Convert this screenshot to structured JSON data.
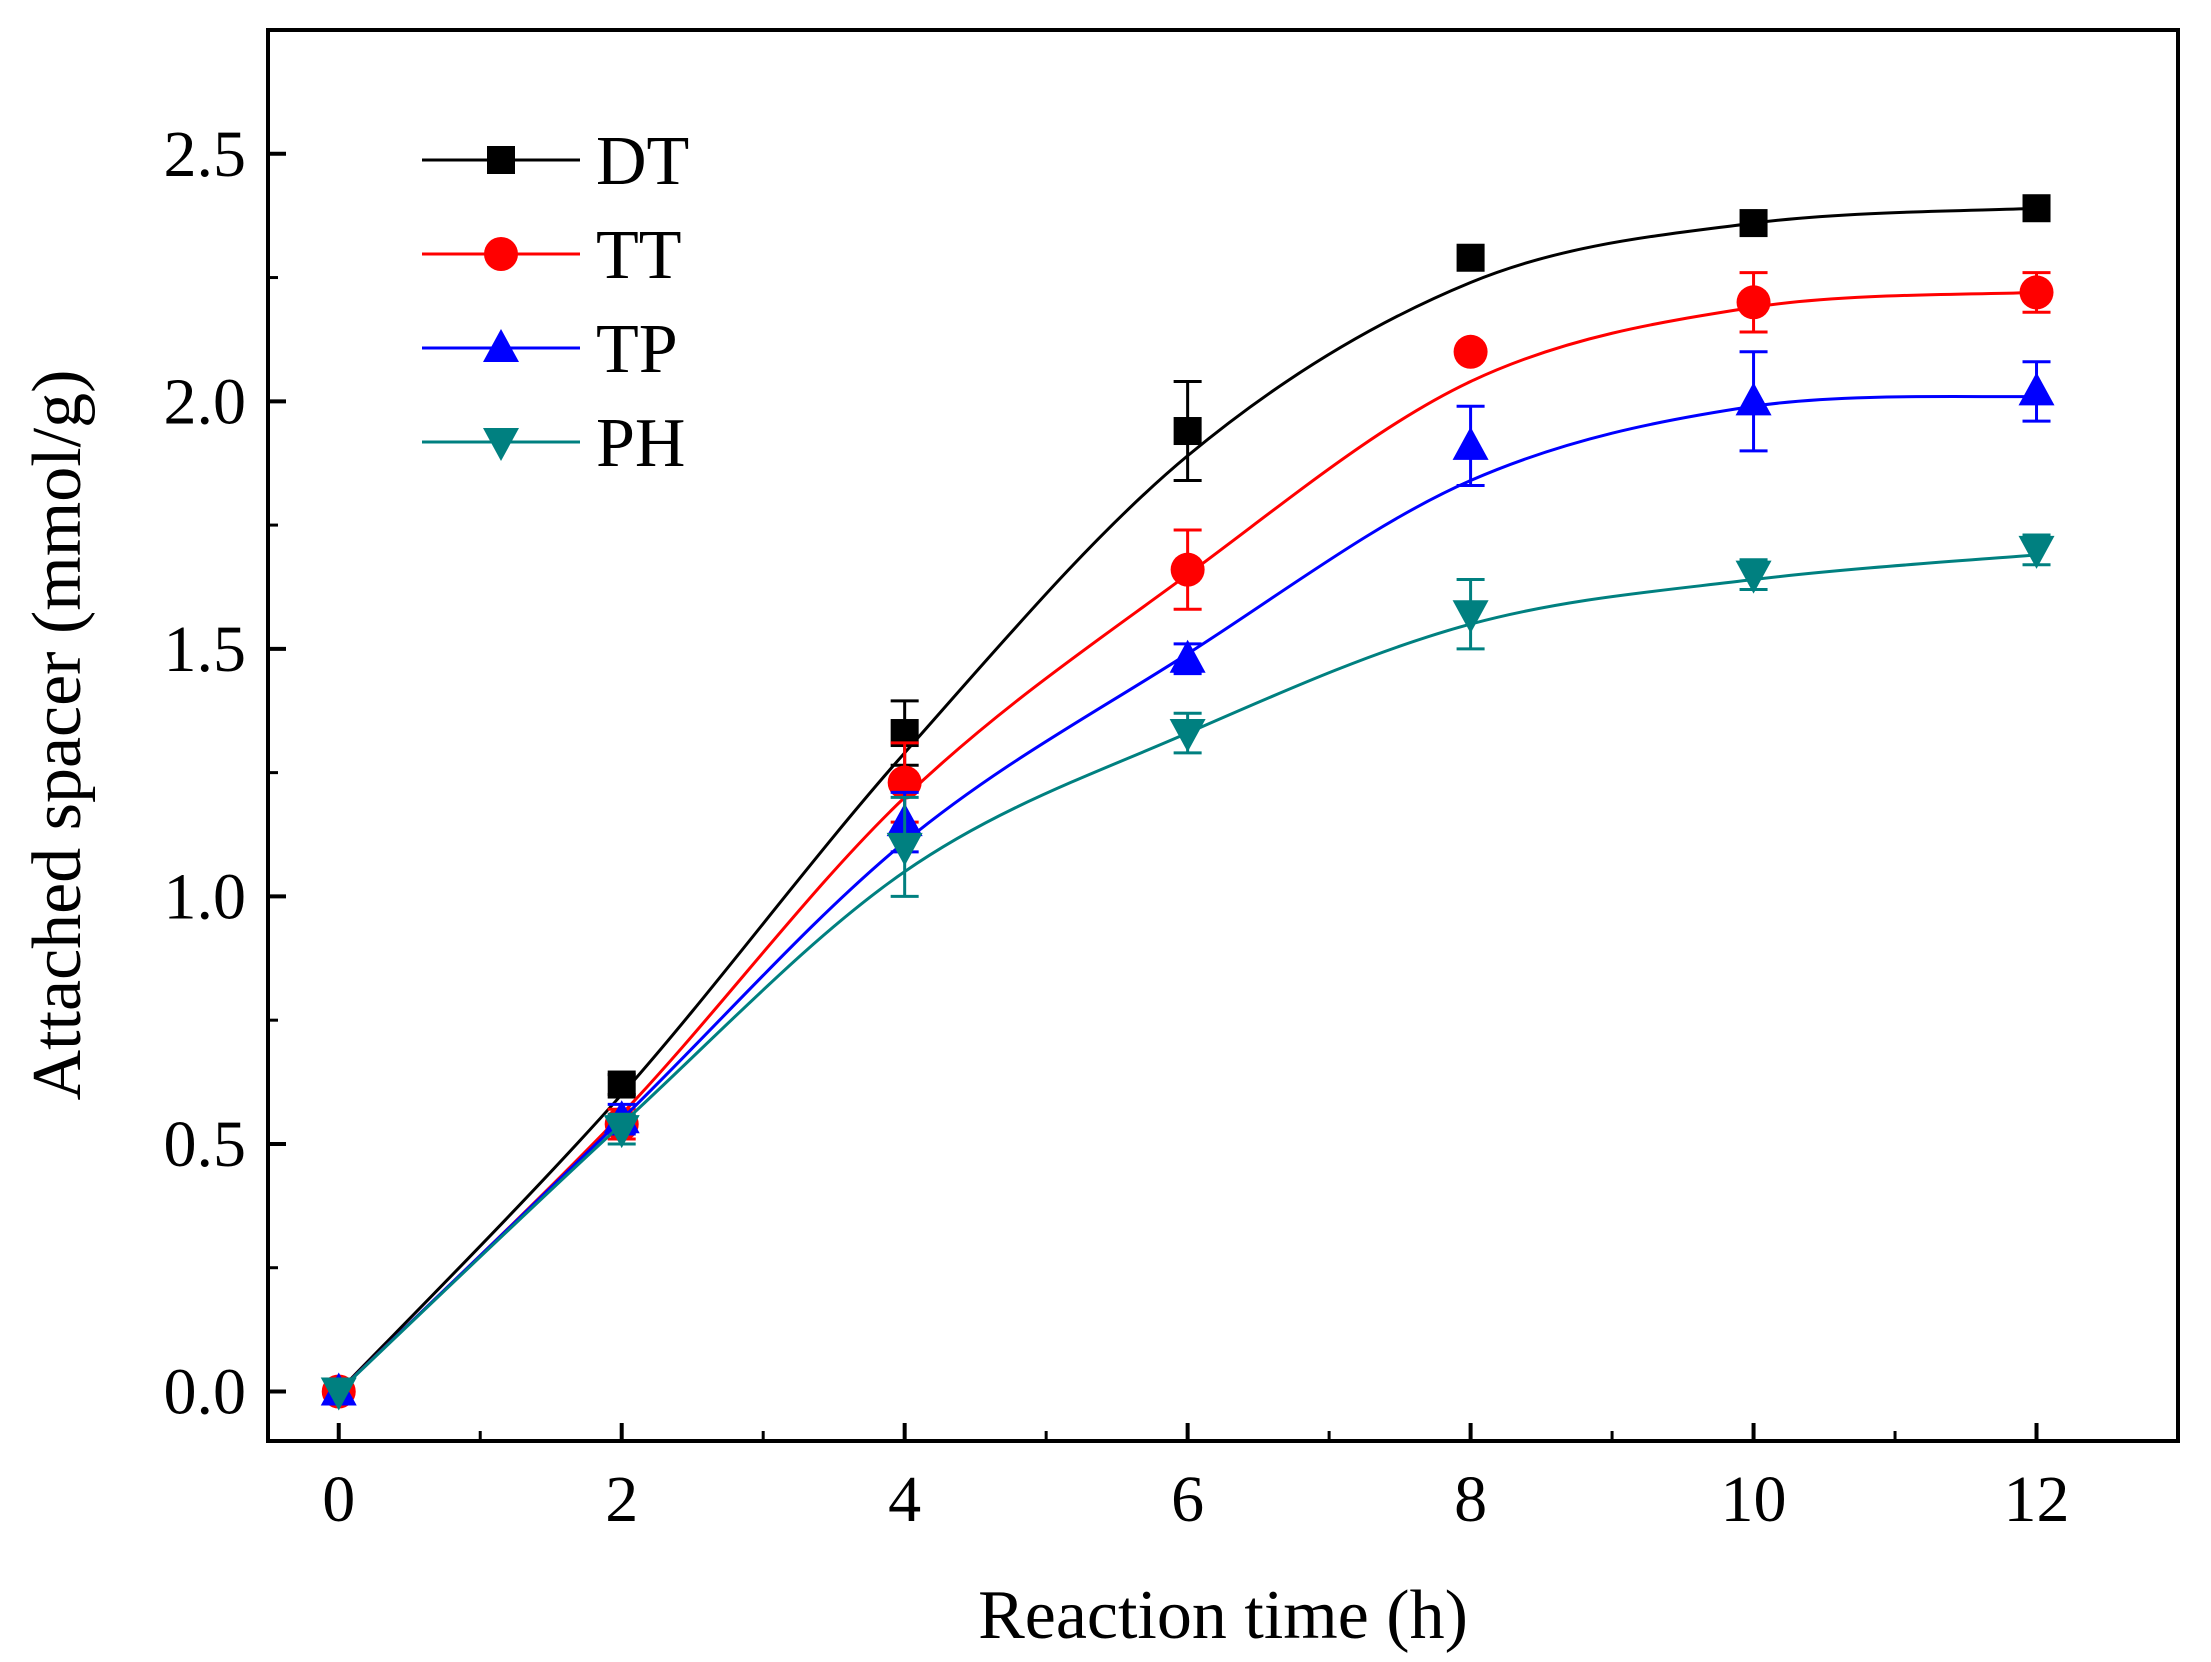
{
  "chart_data": {
    "type": "line",
    "title": "",
    "xlabel": "Reaction time (h)",
    "ylabel": "Attached spacer (mmol/g)",
    "xlim": [
      -0.5,
      13
    ],
    "ylim": [
      -0.1,
      2.75
    ],
    "x_ticks": [
      "0",
      "2",
      "4",
      "6",
      "8",
      "10",
      "12"
    ],
    "y_ticks": [
      "0.0",
      "0.5",
      "1.0",
      "1.5",
      "2.0",
      "2.5"
    ],
    "legend_position": "top-left",
    "x": [
      0,
      2,
      4,
      6,
      8,
      10,
      12
    ],
    "series": [
      {
        "name": "DT",
        "color": "#000000",
        "marker": "square",
        "values": [
          0.0,
          0.62,
          1.33,
          1.94,
          2.29,
          2.36,
          2.39
        ],
        "errors": [
          0.0,
          0.02,
          0.065,
          0.1,
          0.0,
          0.0,
          0.0
        ],
        "fit": [
          0.0,
          0.6,
          1.29,
          1.89,
          2.24,
          2.36,
          2.39
        ]
      },
      {
        "name": "TT",
        "color": "#ff0000",
        "marker": "circle",
        "values": [
          0.0,
          0.54,
          1.23,
          1.66,
          2.1,
          2.2,
          2.22
        ],
        "errors": [
          0.0,
          0.03,
          0.08,
          0.08,
          0.0,
          0.06,
          0.04
        ],
        "fit": [
          0.0,
          0.56,
          1.2,
          1.65,
          2.04,
          2.19,
          2.22
        ]
      },
      {
        "name": "TP",
        "color": "#0000ff",
        "marker": "triangle-up",
        "values": [
          0.0,
          0.55,
          1.15,
          1.48,
          1.91,
          2.0,
          2.02
        ],
        "errors": [
          0.0,
          0.03,
          0.06,
          0.03,
          0.08,
          0.1,
          0.06
        ],
        "fit": [
          0.0,
          0.55,
          1.11,
          1.49,
          1.84,
          1.99,
          2.01
        ]
      },
      {
        "name": "PH",
        "color": "#008080",
        "marker": "triangle-down",
        "values": [
          0.0,
          0.53,
          1.1,
          1.33,
          1.57,
          1.65,
          1.7
        ],
        "errors": [
          0.0,
          0.03,
          0.1,
          0.04,
          0.07,
          0.03,
          0.03
        ],
        "fit": [
          0.0,
          0.54,
          1.05,
          1.33,
          1.55,
          1.64,
          1.69
        ]
      }
    ]
  }
}
